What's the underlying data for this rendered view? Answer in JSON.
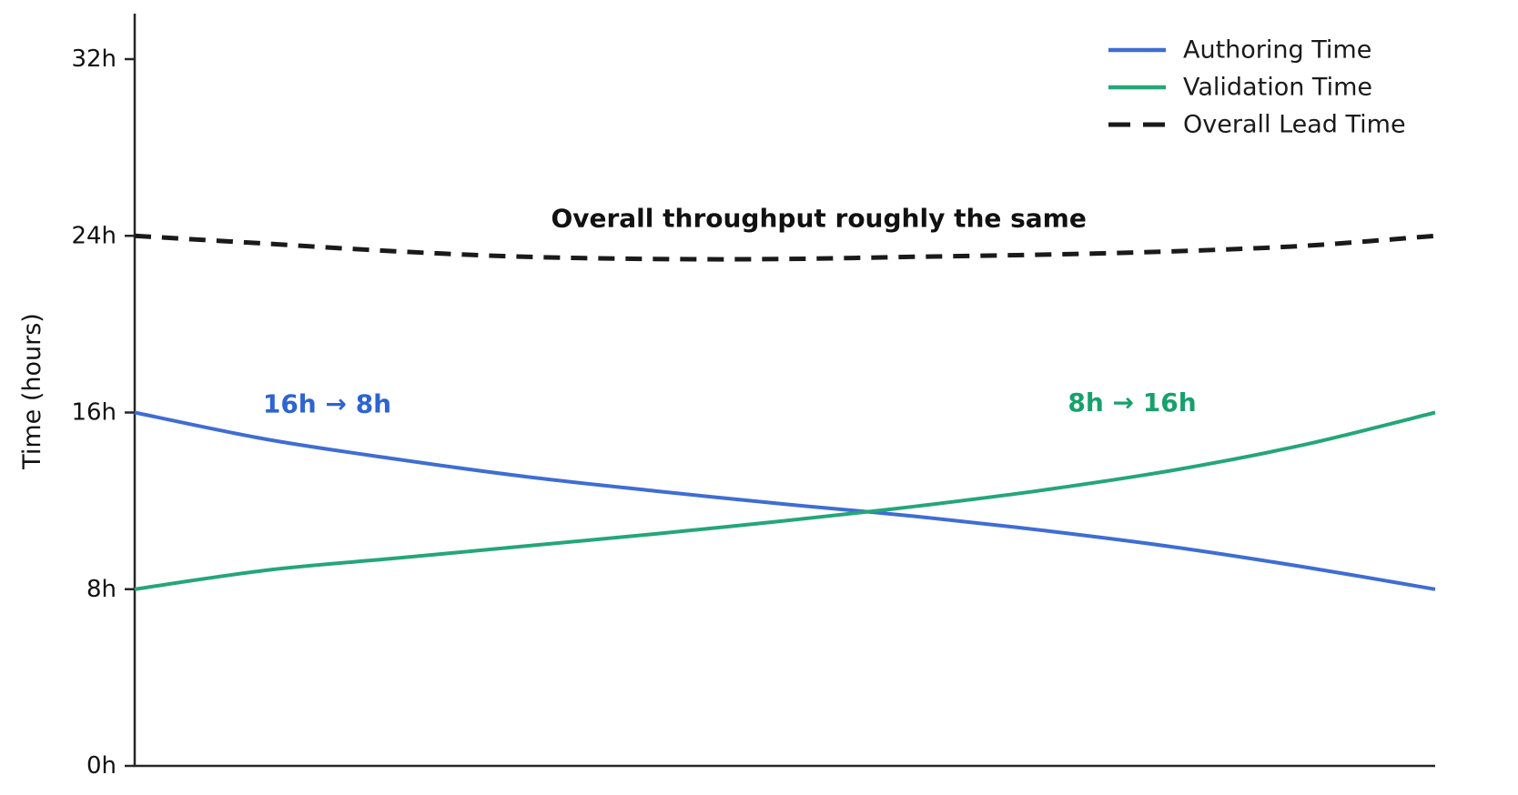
{
  "chart_data": {
    "type": "line",
    "ylabel": "Time (hours)",
    "ylim": [
      0,
      32
    ],
    "grid": false,
    "legend_position": "upper right",
    "axis_color": "#262626",
    "yticks": [
      {
        "value": 0,
        "label": "0h"
      },
      {
        "value": 8,
        "label": "8h"
      },
      {
        "value": 16,
        "label": "16h"
      },
      {
        "value": 24,
        "label": "24h"
      },
      {
        "value": 32,
        "label": "32h"
      }
    ],
    "x": [
      0,
      0.1,
      0.2,
      0.3,
      0.4,
      0.5,
      0.6,
      0.7,
      0.8,
      0.9,
      1.0
    ],
    "series": [
      {
        "name": "Authoring Time",
        "color": "#3f6dd3",
        "dash": "solid",
        "values": [
          16,
          14.8,
          13.9,
          13.1,
          12.45,
          11.85,
          11.3,
          10.65,
          9.9,
          9.0,
          8.0
        ]
      },
      {
        "name": "Validation Time",
        "color": "#25a678",
        "dash": "solid",
        "values": [
          8,
          8.85,
          9.4,
          9.95,
          10.5,
          11.1,
          11.75,
          12.5,
          13.4,
          14.55,
          16.0
        ]
      },
      {
        "name": "Overall Lead Time",
        "color": "#1a1a1a",
        "dash": "dashed",
        "values": [
          24,
          23.65,
          23.3,
          23.05,
          22.95,
          22.95,
          23.05,
          23.15,
          23.3,
          23.55,
          24.0
        ]
      }
    ],
    "annotations": [
      {
        "text": "Overall throughput roughly the same",
        "color": "#111111",
        "x": 0.526,
        "y_hours": 24.8
      },
      {
        "text": "16h → 8h",
        "color": "#2e64d2",
        "x": 0.148,
        "y_hours": 16.4
      },
      {
        "text": "8h → 16h",
        "color": "#17a06c",
        "x": 0.767,
        "y_hours": 16.45
      }
    ]
  }
}
